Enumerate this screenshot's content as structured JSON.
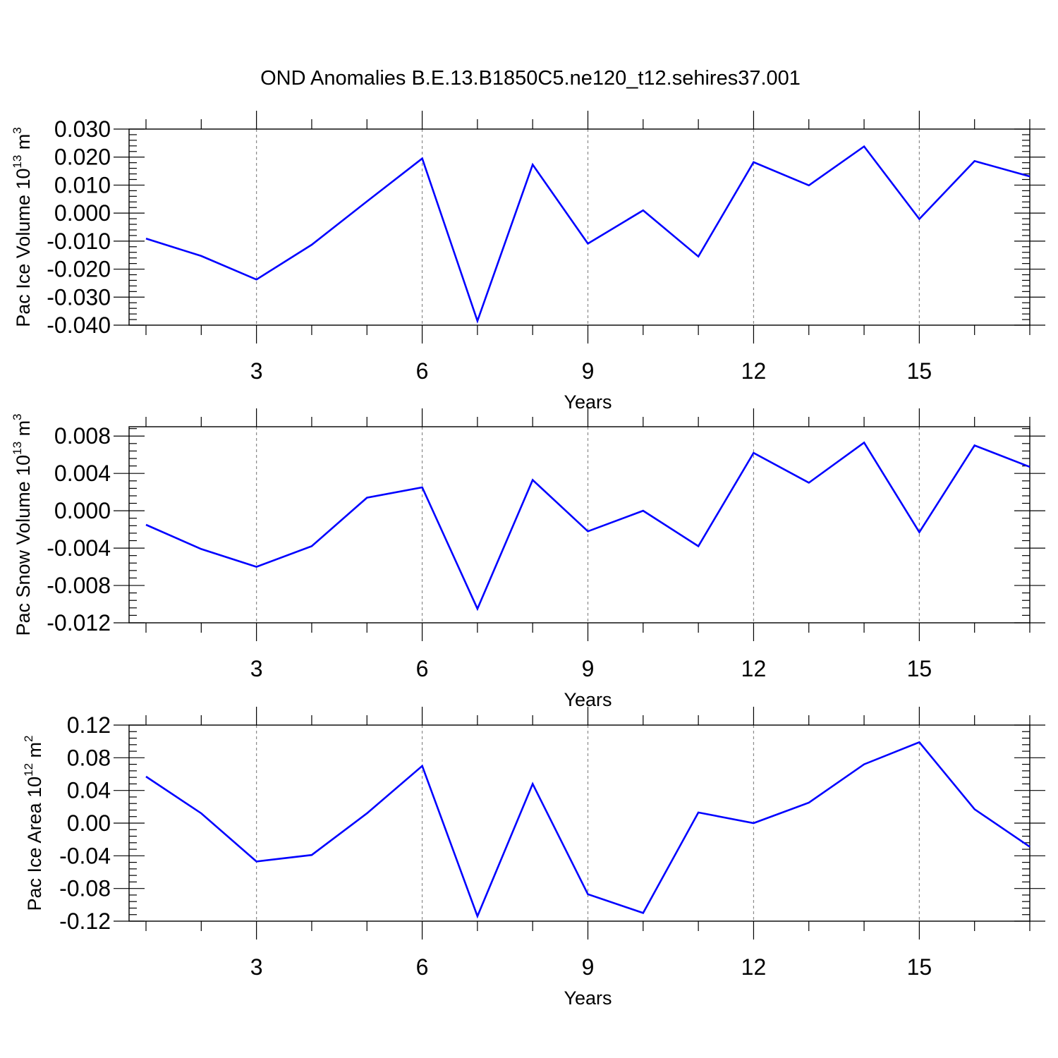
{
  "title": "OND Anomalies B.E.13.B1850C5.ne120_t12.sehires37.001",
  "colors": {
    "line": "#0000ff",
    "grid": "#8a8a8a",
    "axes": "#000000"
  },
  "chart_data": [
    {
      "type": "line",
      "ylabel": "Pac Ice Volume 10",
      "ylabel_exp": "13",
      "ylabel_unit": " m",
      "ylabel_unit_exp": "3",
      "xlabel": "Years",
      "xlim": [
        1,
        17
      ],
      "ylim": [
        -0.04,
        0.03
      ],
      "xticks": [
        3,
        6,
        9,
        12,
        15
      ],
      "xtick_labels": [
        "3",
        "6",
        "9",
        "12",
        "15"
      ],
      "yticks": [
        -0.04,
        -0.03,
        -0.02,
        -0.01,
        0.0,
        0.01,
        0.02,
        0.03
      ],
      "ytick_labels": [
        "-0.040",
        "-0.030",
        "-0.020",
        "-0.010",
        "0.000",
        "0.010",
        "0.020",
        "0.030"
      ],
      "grid": "vertical dashed at major x ticks",
      "x": [
        1,
        2,
        3,
        4,
        5,
        6,
        7,
        8,
        9,
        10,
        11,
        12,
        13,
        14,
        15,
        16,
        17
      ],
      "y": [
        -0.0091,
        -0.0153,
        -0.0237,
        -0.0113,
        0.0042,
        0.0195,
        -0.0385,
        0.0173,
        -0.0109,
        0.001,
        -0.0155,
        0.0182,
        0.0099,
        0.0238,
        -0.0021,
        0.0186,
        0.0131
      ]
    },
    {
      "type": "line",
      "ylabel": "Pac Snow Volume 10",
      "ylabel_exp": "13",
      "ylabel_unit": " m",
      "ylabel_unit_exp": "3",
      "xlabel": "Years",
      "xlim": [
        1,
        17
      ],
      "ylim": [
        -0.012,
        0.009
      ],
      "xticks": [
        3,
        6,
        9,
        12,
        15
      ],
      "xtick_labels": [
        "3",
        "6",
        "9",
        "12",
        "15"
      ],
      "yticks": [
        -0.012,
        -0.008,
        -0.004,
        0.0,
        0.004,
        0.008
      ],
      "ytick_labels": [
        "-0.012",
        "-0.008",
        "-0.004",
        "0.000",
        "0.004",
        "0.008"
      ],
      "grid": "vertical dashed at major x ticks",
      "x": [
        1,
        2,
        3,
        4,
        5,
        6,
        7,
        8,
        9,
        10,
        11,
        12,
        13,
        14,
        15,
        16,
        17
      ],
      "y": [
        -0.0015,
        -0.0041,
        -0.006,
        -0.0038,
        0.0014,
        0.0025,
        -0.0105,
        0.0033,
        -0.0022,
        0.0,
        -0.0038,
        0.0062,
        0.003,
        0.0073,
        -0.0023,
        0.007,
        0.0047
      ]
    },
    {
      "type": "line",
      "ylabel": "Pac Ice Area 10",
      "ylabel_exp": "12",
      "ylabel_unit": " m",
      "ylabel_unit_exp": "2",
      "xlabel": "Years",
      "xlim": [
        1,
        17
      ],
      "ylim": [
        -0.12,
        0.12
      ],
      "xticks": [
        3,
        6,
        9,
        12,
        15
      ],
      "xtick_labels": [
        "3",
        "6",
        "9",
        "12",
        "15"
      ],
      "yticks": [
        -0.12,
        -0.08,
        -0.04,
        0.0,
        0.04,
        0.08,
        0.12
      ],
      "ytick_labels": [
        "-0.12",
        "-0.08",
        "-0.04",
        "0.00",
        "0.04",
        "0.08",
        "0.12"
      ],
      "grid": "vertical dashed at major x ticks",
      "x": [
        1,
        2,
        3,
        4,
        5,
        6,
        7,
        8,
        9,
        10,
        11,
        12,
        13,
        14,
        15,
        16,
        17
      ],
      "y": [
        0.057,
        0.012,
        -0.047,
        -0.039,
        0.012,
        0.07,
        -0.114,
        0.048,
        -0.087,
        -0.11,
        0.013,
        0.0,
        0.025,
        0.072,
        0.099,
        0.017,
        -0.029
      ]
    }
  ]
}
